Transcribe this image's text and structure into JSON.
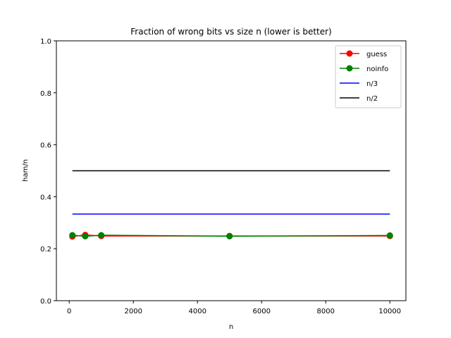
{
  "chart_data": {
    "type": "line",
    "title": "Fraction of wrong bits vs size n (lower is better)",
    "xlabel": "n",
    "ylabel": "ham/n",
    "xlim": [
      -400,
      10500
    ],
    "ylim": [
      0.0,
      1.0
    ],
    "xticks": [
      0,
      2000,
      4000,
      6000,
      8000,
      10000
    ],
    "xtick_labels": [
      "0",
      "2000",
      "4000",
      "6000",
      "8000",
      "10000"
    ],
    "yticks": [
      0.0,
      0.2,
      0.4,
      0.6,
      0.8,
      1.0
    ],
    "ytick_labels": [
      "0.0",
      "0.2",
      "0.4",
      "0.6",
      "0.8",
      "1.0"
    ],
    "grid": false,
    "legend_position": "top-right",
    "series": [
      {
        "name": "guess",
        "color": "#ff0000",
        "marker": true,
        "x": [
          100,
          500,
          1000,
          5000,
          10000
        ],
        "y": [
          0.247,
          0.253,
          0.249,
          0.249,
          0.249
        ]
      },
      {
        "name": "noinfo",
        "color": "#008000",
        "marker": true,
        "x": [
          100,
          500,
          1000,
          5000,
          10000
        ],
        "y": [
          0.252,
          0.248,
          0.252,
          0.248,
          0.251
        ]
      },
      {
        "name": "n/3",
        "color": "#0000ff",
        "marker": false,
        "x": [
          100,
          10000
        ],
        "y": [
          0.3333,
          0.3333
        ]
      },
      {
        "name": "n/2",
        "color": "#000000",
        "marker": false,
        "x": [
          100,
          10000
        ],
        "y": [
          0.5,
          0.5
        ]
      }
    ]
  }
}
